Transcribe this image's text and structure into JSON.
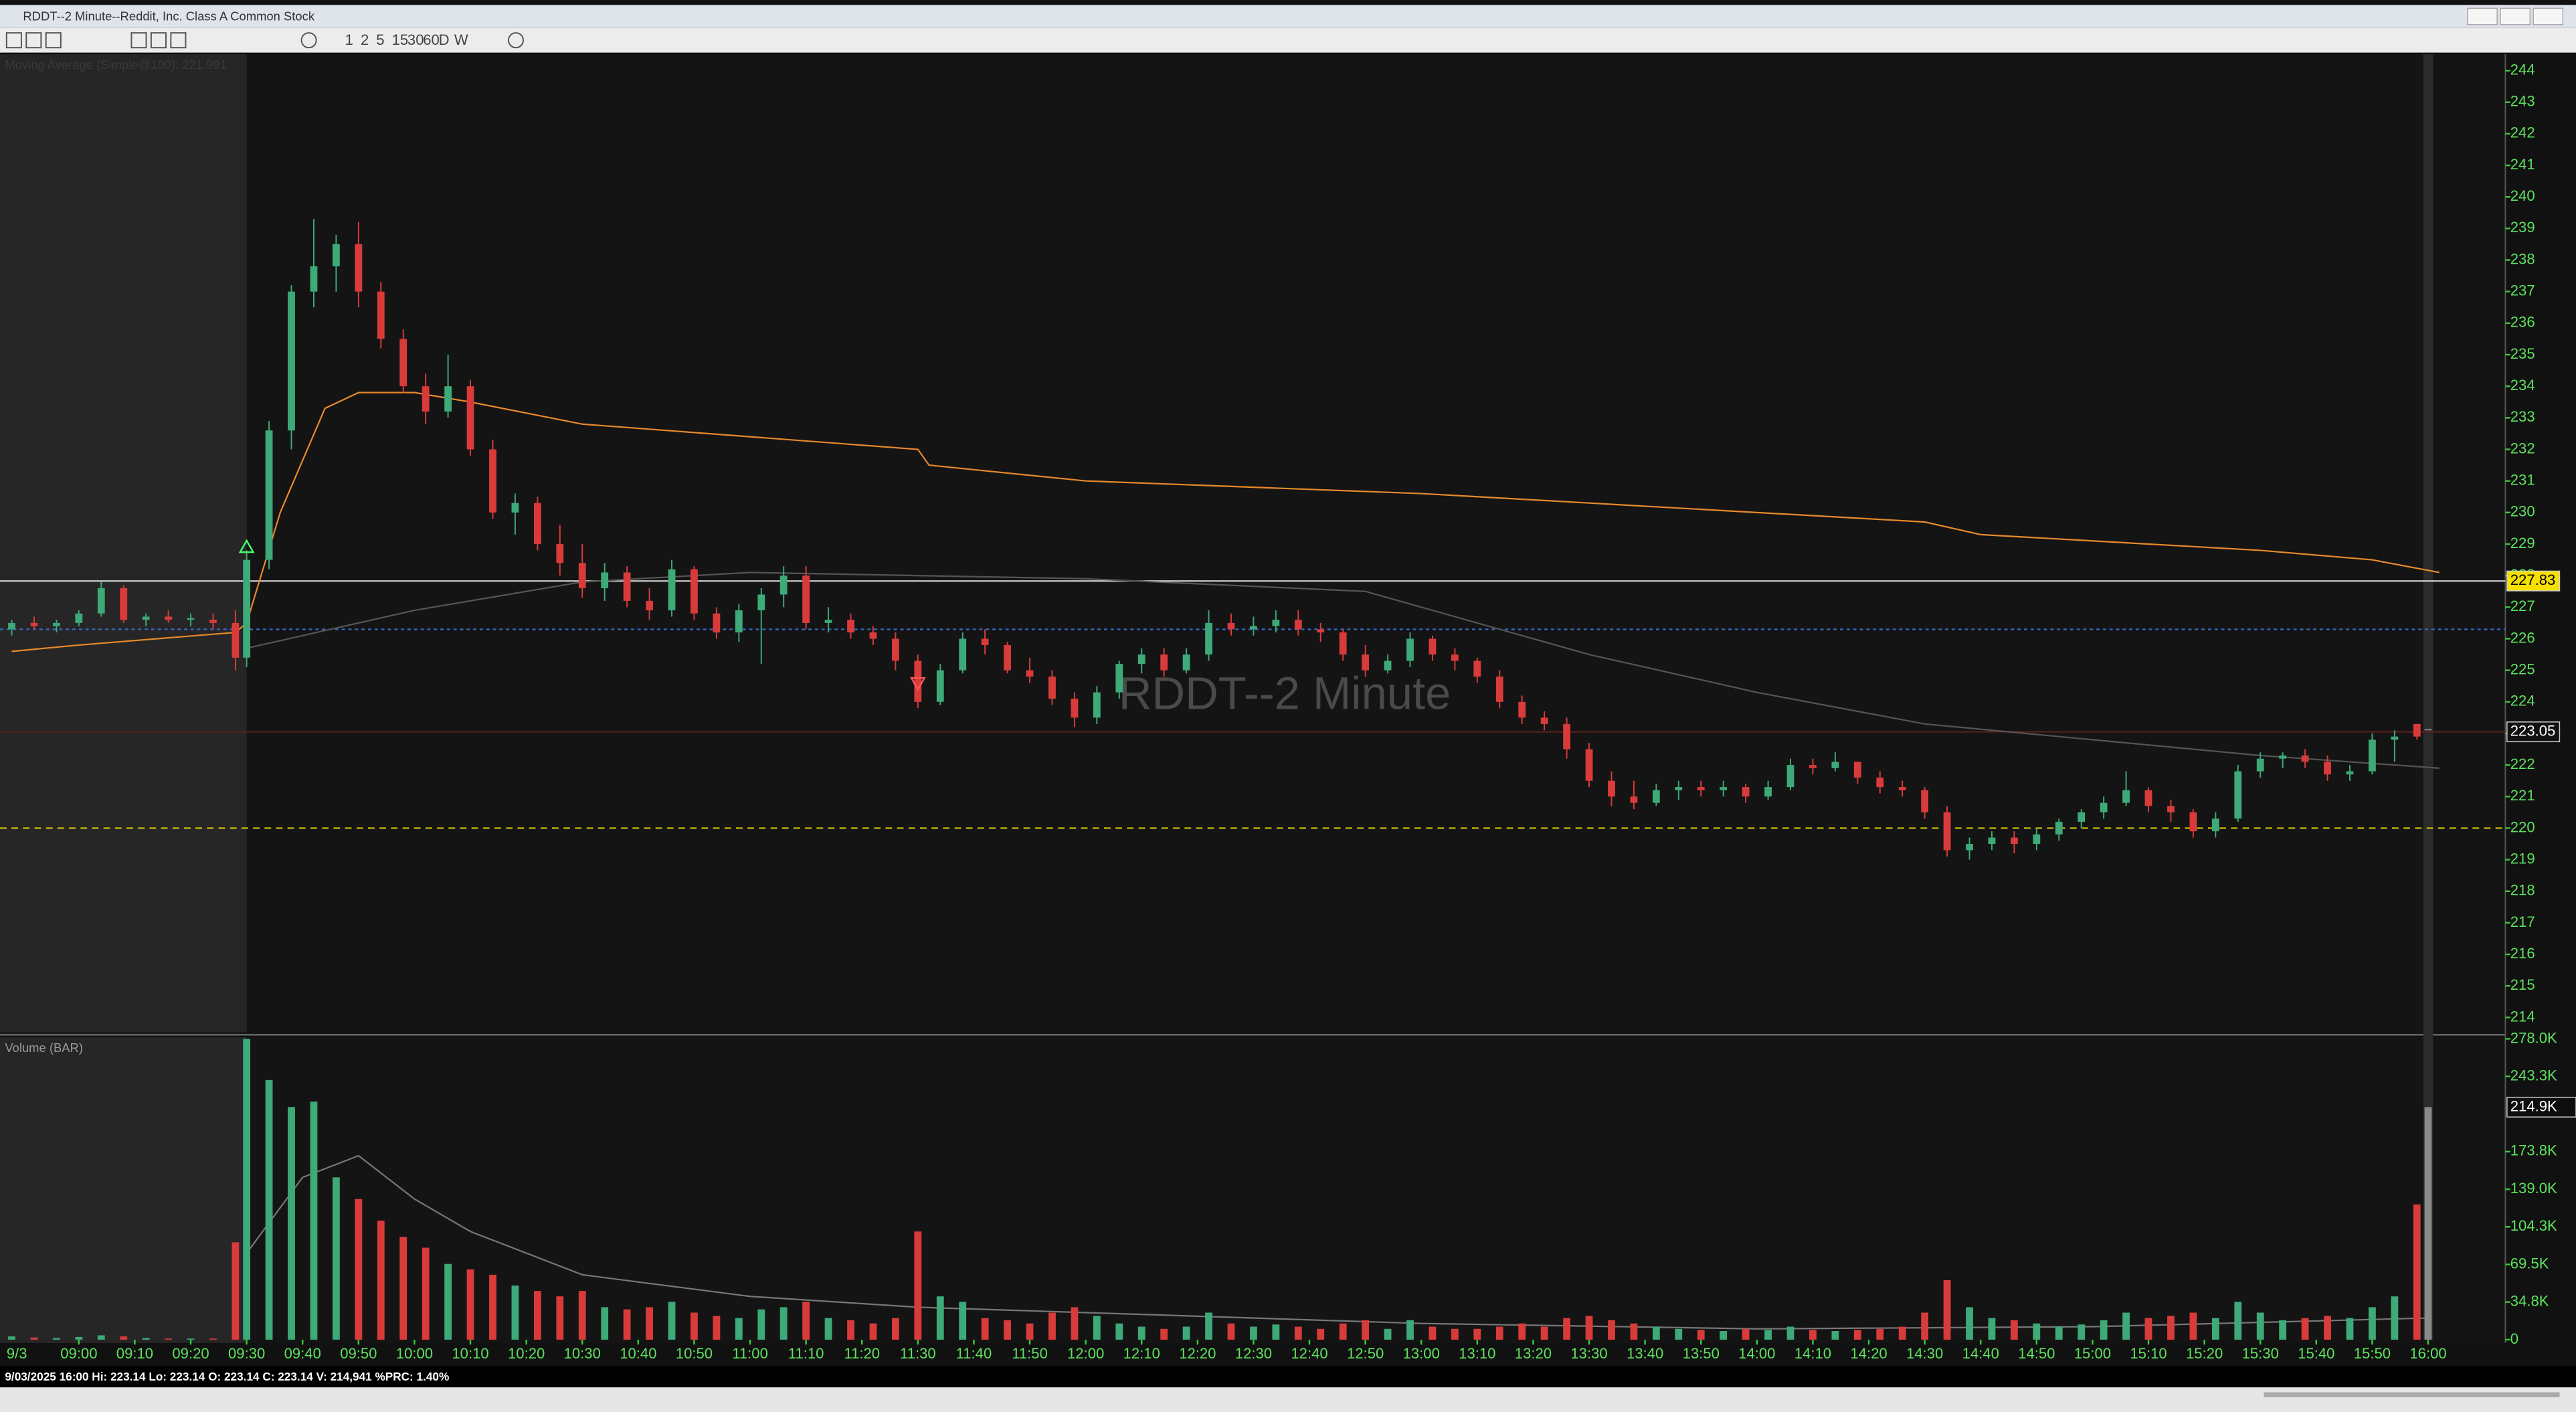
{
  "window_title": "RDDT--2 Minute--Reddit, Inc. Class A Common Stock",
  "toolbar": {
    "intervals": [
      "1",
      "2",
      "5",
      "15",
      "30",
      "60",
      "D",
      "W"
    ]
  },
  "chart_data": {
    "type": "candlestick",
    "title": "RDDT--2 Minute",
    "indicator_label": "Moving Average (Simple@100): 221.991",
    "volume_label": "Volume (BAR)",
    "date_label": "9/3",
    "status": "9/03/2025 16:00  Hi: 223.14  Lo: 223.14  O: 223.14  C: 223.14  V: 214,941 %PRC: 1.40%",
    "up_color": "#3daa78",
    "down_color": "#d93b3b",
    "flat_color": "#8a8a8a",
    "ylim": [
      213.53,
      244.52
    ],
    "yticks": [
      214,
      215,
      216,
      217,
      218,
      219,
      220,
      221,
      222,
      223,
      224,
      225,
      226,
      227,
      228,
      229,
      230,
      231,
      232,
      233,
      234,
      235,
      236,
      237,
      238,
      239,
      240,
      241,
      242,
      243,
      244
    ],
    "volume_ylim": [
      0,
      278000
    ],
    "volume_yticks": [
      {
        "value": 0,
        "label": "0"
      },
      {
        "value": 34800,
        "label": "34.8K"
      },
      {
        "value": 69500,
        "label": "69.5K"
      },
      {
        "value": 104300,
        "label": "104.3K"
      },
      {
        "value": 139000,
        "label": "139.0K"
      },
      {
        "value": 173800,
        "label": "173.8K"
      },
      {
        "value": 243300,
        "label": "243.3K"
      },
      {
        "value": 278000,
        "label": "278.0K"
      }
    ],
    "volume_marker": {
      "value": 214900,
      "label": "214.9K"
    },
    "xticks": [
      "09:00",
      "09:10",
      "09:20",
      "09:30",
      "09:40",
      "09:50",
      "10:00",
      "10:10",
      "10:20",
      "10:30",
      "10:40",
      "10:50",
      "11:00",
      "11:10",
      "11:20",
      "11:30",
      "11:40",
      "11:50",
      "12:00",
      "12:10",
      "12:20",
      "12:30",
      "12:40",
      "12:50",
      "13:00",
      "13:10",
      "13:20",
      "13:30",
      "13:40",
      "13:50",
      "14:00",
      "14:10",
      "14:20",
      "14:30",
      "14:40",
      "14:50",
      "15:00",
      "15:10",
      "15:20",
      "15:30",
      "15:40",
      "15:50",
      "16:00"
    ],
    "session_open": "09:30",
    "levels": [
      {
        "value": 227.83,
        "color": "#e8e8e8",
        "dash": "",
        "boxed": true,
        "box_color": "#f5e000"
      },
      {
        "value": 226.3,
        "color": "#3a6fd8",
        "dash": "2,2",
        "boxed": false
      },
      {
        "value": 223.05,
        "color": "#5a2020",
        "dash": "",
        "boxed": true,
        "box_color": "#111111"
      },
      {
        "value": 220,
        "color": "#f5e000",
        "dash": "4,3",
        "boxed": false
      }
    ],
    "signals": [
      {
        "time": "09:30",
        "price": 228.9,
        "dir": "up",
        "color": "#44ff66"
      },
      {
        "time": "11:30",
        "price": 224.6,
        "dir": "down",
        "color": "#ff5555"
      }
    ],
    "series": [
      {
        "name": "Moving Average",
        "color": "#e8892c",
        "points": [
          [
            "08:48",
            225.6
          ],
          [
            "09:00",
            225.8
          ],
          [
            "09:28",
            226.2
          ],
          [
            "09:30",
            226.5
          ],
          [
            "09:36",
            230
          ],
          [
            "09:44",
            233.3
          ],
          [
            "09:50",
            233.8
          ],
          [
            "10:00",
            233.8
          ],
          [
            "10:10",
            233.5
          ],
          [
            "10:30",
            232.8
          ],
          [
            "11:00",
            232.4
          ],
          [
            "11:30",
            232
          ],
          [
            "11:32",
            231.5
          ],
          [
            "12:00",
            231
          ],
          [
            "12:30",
            230.8
          ],
          [
            "13:00",
            230.6
          ],
          [
            "13:30",
            230.3
          ],
          [
            "14:00",
            230
          ],
          [
            "14:30",
            229.7
          ],
          [
            "14:40",
            229.3
          ],
          [
            "15:00",
            229.1
          ],
          [
            "15:30",
            228.8
          ],
          [
            "15:50",
            228.5
          ],
          [
            "16:02",
            228.1
          ]
        ]
      },
      {
        "name": "Moving Average 2",
        "color": "#555555",
        "points": [
          [
            "09:30",
            225.7
          ],
          [
            "10:00",
            226.9
          ],
          [
            "10:30",
            227.8
          ],
          [
            "11:00",
            228.1
          ],
          [
            "12:00",
            227.9
          ],
          [
            "12:50",
            227.5
          ],
          [
            "13:30",
            225.5
          ],
          [
            "14:00",
            224.3
          ],
          [
            "14:30",
            223.3
          ],
          [
            "15:00",
            222.8
          ],
          [
            "15:30",
            222.3
          ],
          [
            "16:02",
            221.9
          ]
        ]
      },
      {
        "name": "Volume Average",
        "color": "#777777",
        "axis": "volume",
        "points": [
          [
            "09:30",
            80000
          ],
          [
            "09:40",
            150000
          ],
          [
            "09:50",
            170000
          ],
          [
            "10:00",
            130000
          ],
          [
            "10:10",
            100000
          ],
          [
            "10:30",
            60000
          ],
          [
            "11:00",
            40000
          ],
          [
            "11:30",
            30000
          ],
          [
            "12:00",
            25000
          ],
          [
            "13:00",
            15000
          ],
          [
            "14:00",
            10000
          ],
          [
            "15:00",
            12000
          ],
          [
            "16:00",
            20000
          ]
        ]
      }
    ],
    "candles": [
      [
        "08:48",
        226.3,
        226.6,
        226.1,
        226.5,
        3000
      ],
      [
        "08:52",
        226.5,
        226.7,
        226.3,
        226.4,
        2000
      ],
      [
        "08:56",
        226.4,
        226.6,
        226.2,
        226.5,
        1500
      ],
      [
        "09:00",
        226.5,
        226.9,
        226.4,
        226.8,
        2500
      ],
      [
        "09:04",
        226.8,
        227.8,
        226.7,
        227.6,
        4000
      ],
      [
        "09:08",
        227.6,
        227.7,
        226.5,
        226.6,
        3000
      ],
      [
        "09:12",
        226.6,
        226.8,
        226.4,
        226.7,
        1500
      ],
      [
        "09:16",
        226.7,
        226.9,
        226.5,
        226.6,
        1000
      ],
      [
        "09:20",
        226.6,
        226.8,
        226.4,
        226.65,
        1000
      ],
      [
        "09:24",
        226.6,
        226.8,
        226.3,
        226.5,
        1000
      ],
      [
        "09:28",
        226.5,
        226.9,
        225.0,
        225.4,
        90000
      ],
      [
        "09:30",
        225.4,
        228.8,
        225.1,
        228.5,
        278000
      ],
      [
        "09:34",
        228.5,
        232.9,
        228.2,
        232.6,
        240000
      ],
      [
        "09:38",
        232.6,
        237.2,
        232.0,
        237.0,
        215000
      ],
      [
        "09:42",
        237.0,
        239.3,
        236.5,
        237.8,
        220000
      ],
      [
        "09:46",
        237.8,
        238.8,
        237.0,
        238.5,
        150000
      ],
      [
        "09:50",
        238.5,
        239.2,
        236.5,
        237.0,
        130000
      ],
      [
        "09:54",
        237.0,
        237.3,
        235.2,
        235.5,
        110000
      ],
      [
        "09:58",
        235.5,
        235.8,
        233.8,
        234.0,
        95000
      ],
      [
        "10:02",
        234.0,
        234.4,
        232.8,
        233.2,
        85000
      ],
      [
        "10:06",
        233.2,
        235.0,
        233.0,
        234.0,
        70000
      ],
      [
        "10:10",
        234.0,
        234.2,
        231.8,
        232.0,
        65000
      ],
      [
        "10:14",
        232.0,
        232.3,
        229.8,
        230.0,
        60000
      ],
      [
        "10:18",
        230.0,
        230.6,
        229.3,
        230.3,
        50000
      ],
      [
        "10:22",
        230.3,
        230.5,
        228.8,
        229.0,
        45000
      ],
      [
        "10:26",
        229.0,
        229.6,
        228.0,
        228.4,
        40000
      ],
      [
        "10:30",
        228.4,
        229.0,
        227.3,
        227.6,
        45000
      ],
      [
        "10:34",
        227.6,
        228.4,
        227.2,
        228.1,
        30000
      ],
      [
        "10:38",
        228.1,
        228.3,
        227.0,
        227.2,
        28000
      ],
      [
        "10:42",
        227.2,
        227.6,
        226.6,
        226.9,
        30000
      ],
      [
        "10:46",
        226.9,
        228.5,
        226.7,
        228.2,
        35000
      ],
      [
        "10:50",
        228.2,
        228.3,
        226.6,
        226.8,
        25000
      ],
      [
        "10:54",
        226.8,
        227.0,
        226.0,
        226.2,
        22000
      ],
      [
        "10:58",
        226.2,
        227.1,
        225.9,
        226.9,
        20000
      ],
      [
        "11:02",
        226.9,
        227.6,
        225.2,
        227.4,
        28000
      ],
      [
        "11:06",
        227.4,
        228.3,
        227.0,
        228.0,
        30000
      ],
      [
        "11:10",
        228.0,
        228.3,
        226.3,
        226.5,
        35000
      ],
      [
        "11:14",
        226.5,
        227.0,
        226.2,
        226.6,
        20000
      ],
      [
        "11:18",
        226.6,
        226.8,
        226.0,
        226.2,
        18000
      ],
      [
        "11:22",
        226.2,
        226.4,
        225.8,
        226.0,
        15000
      ],
      [
        "11:26",
        226.0,
        226.2,
        225.0,
        225.3,
        20000
      ],
      [
        "11:30",
        225.3,
        225.5,
        223.8,
        224.0,
        100000
      ],
      [
        "11:34",
        224.0,
        225.2,
        223.9,
        225.0,
        40000
      ],
      [
        "11:38",
        225.0,
        226.2,
        224.9,
        226.0,
        35000
      ],
      [
        "11:42",
        226.0,
        226.3,
        225.5,
        225.8,
        20000
      ],
      [
        "11:46",
        225.8,
        225.9,
        224.9,
        225.0,
        18000
      ],
      [
        "11:50",
        225.0,
        225.4,
        224.6,
        224.8,
        15000
      ],
      [
        "11:54",
        224.8,
        225.0,
        223.9,
        224.1,
        25000
      ],
      [
        "11:58",
        224.1,
        224.3,
        223.2,
        223.5,
        30000
      ],
      [
        "12:02",
        223.5,
        224.5,
        223.3,
        224.3,
        22000
      ],
      [
        "12:06",
        224.3,
        225.3,
        224.1,
        225.2,
        15000
      ],
      [
        "12:10",
        225.2,
        225.7,
        224.9,
        225.5,
        12000
      ],
      [
        "12:14",
        225.5,
        225.7,
        224.8,
        225.0,
        10000
      ],
      [
        "12:18",
        225.0,
        225.7,
        224.9,
        225.5,
        12000
      ],
      [
        "12:22",
        225.5,
        226.9,
        225.3,
        226.5,
        25000
      ],
      [
        "12:26",
        226.5,
        226.8,
        226.1,
        226.3,
        15000
      ],
      [
        "12:30",
        226.3,
        226.7,
        226.1,
        226.4,
        12000
      ],
      [
        "12:34",
        226.4,
        226.9,
        226.2,
        226.6,
        14000
      ],
      [
        "12:38",
        226.6,
        226.9,
        226.1,
        226.3,
        12000
      ],
      [
        "12:42",
        226.3,
        226.5,
        225.9,
        226.2,
        10000
      ],
      [
        "12:46",
        226.2,
        226.3,
        225.3,
        225.5,
        15000
      ],
      [
        "12:50",
        225.5,
        225.8,
        224.8,
        225.0,
        18000
      ],
      [
        "12:54",
        225.0,
        225.5,
        224.9,
        225.3,
        10000
      ],
      [
        "12:58",
        225.3,
        226.2,
        225.1,
        226.0,
        18000
      ],
      [
        "13:02",
        226.0,
        226.1,
        225.3,
        225.5,
        12000
      ],
      [
        "13:06",
        225.5,
        225.7,
        225.0,
        225.3,
        10000
      ],
      [
        "13:10",
        225.3,
        225.4,
        224.6,
        224.8,
        10000
      ],
      [
        "13:14",
        224.8,
        225.0,
        223.8,
        224.0,
        12000
      ],
      [
        "13:18",
        224.0,
        224.2,
        223.3,
        223.5,
        15000
      ],
      [
        "13:22",
        223.5,
        223.7,
        223.1,
        223.3,
        12000
      ],
      [
        "13:26",
        223.3,
        223.5,
        222.2,
        222.5,
        20000
      ],
      [
        "13:30",
        222.5,
        222.7,
        221.3,
        221.5,
        22000
      ],
      [
        "13:34",
        221.5,
        221.8,
        220.7,
        221.0,
        18000
      ],
      [
        "13:38",
        221.0,
        221.5,
        220.6,
        220.8,
        15000
      ],
      [
        "13:42",
        220.8,
        221.4,
        220.7,
        221.2,
        12000
      ],
      [
        "13:46",
        221.2,
        221.5,
        220.9,
        221.3,
        10000
      ],
      [
        "13:50",
        221.3,
        221.5,
        221.0,
        221.2,
        9000
      ],
      [
        "13:54",
        221.2,
        221.5,
        221.0,
        221.3,
        8000
      ],
      [
        "13:58",
        221.3,
        221.4,
        220.8,
        221.0,
        10000
      ],
      [
        "14:02",
        221.0,
        221.5,
        220.9,
        221.3,
        9000
      ],
      [
        "14:06",
        221.3,
        222.2,
        221.2,
        222.0,
        12000
      ],
      [
        "14:10",
        222.0,
        222.2,
        221.7,
        221.9,
        9000
      ],
      [
        "14:14",
        221.9,
        222.4,
        221.8,
        222.1,
        8000
      ],
      [
        "14:18",
        222.1,
        222.1,
        221.4,
        221.6,
        9000
      ],
      [
        "14:22",
        221.6,
        221.8,
        221.1,
        221.3,
        10000
      ],
      [
        "14:26",
        221.3,
        221.5,
        221.0,
        221.2,
        12000
      ],
      [
        "14:30",
        221.2,
        221.3,
        220.3,
        220.5,
        25000
      ],
      [
        "14:34",
        220.5,
        220.7,
        219.1,
        219.3,
        55000
      ],
      [
        "14:38",
        219.3,
        219.7,
        219.0,
        219.5,
        30000
      ],
      [
        "14:42",
        219.5,
        219.9,
        219.3,
        219.7,
        20000
      ],
      [
        "14:46",
        219.7,
        219.9,
        219.2,
        219.5,
        18000
      ],
      [
        "14:50",
        219.5,
        220.0,
        219.3,
        219.8,
        15000
      ],
      [
        "14:54",
        219.8,
        220.3,
        219.6,
        220.2,
        12000
      ],
      [
        "14:58",
        220.2,
        220.6,
        220.0,
        220.5,
        14000
      ],
      [
        "15:02",
        220.5,
        221.0,
        220.3,
        220.8,
        18000
      ],
      [
        "15:06",
        220.8,
        221.8,
        220.7,
        221.2,
        25000
      ],
      [
        "15:10",
        221.2,
        221.3,
        220.5,
        220.7,
        20000
      ],
      [
        "15:14",
        220.7,
        220.9,
        220.2,
        220.5,
        22000
      ],
      [
        "15:18",
        220.5,
        220.6,
        219.7,
        219.9,
        25000
      ],
      [
        "15:22",
        219.9,
        220.5,
        219.7,
        220.3,
        20000
      ],
      [
        "15:26",
        220.3,
        222.0,
        220.2,
        221.8,
        35000
      ],
      [
        "15:30",
        221.8,
        222.4,
        221.6,
        222.2,
        25000
      ],
      [
        "15:34",
        222.2,
        222.4,
        221.9,
        222.3,
        18000
      ],
      [
        "15:38",
        222.3,
        222.5,
        221.9,
        222.1,
        20000
      ],
      [
        "15:42",
        222.1,
        222.3,
        221.5,
        221.7,
        22000
      ],
      [
        "15:46",
        221.7,
        222.0,
        221.5,
        221.8,
        20000
      ],
      [
        "15:50",
        221.8,
        223.0,
        221.7,
        222.8,
        30000
      ],
      [
        "15:54",
        222.8,
        223.1,
        222.1,
        222.9,
        40000
      ],
      [
        "15:58",
        223.3,
        223.3,
        222.8,
        222.9,
        125000
      ],
      [
        "16:00",
        223.14,
        223.14,
        223.14,
        223.14,
        214941
      ]
    ]
  }
}
